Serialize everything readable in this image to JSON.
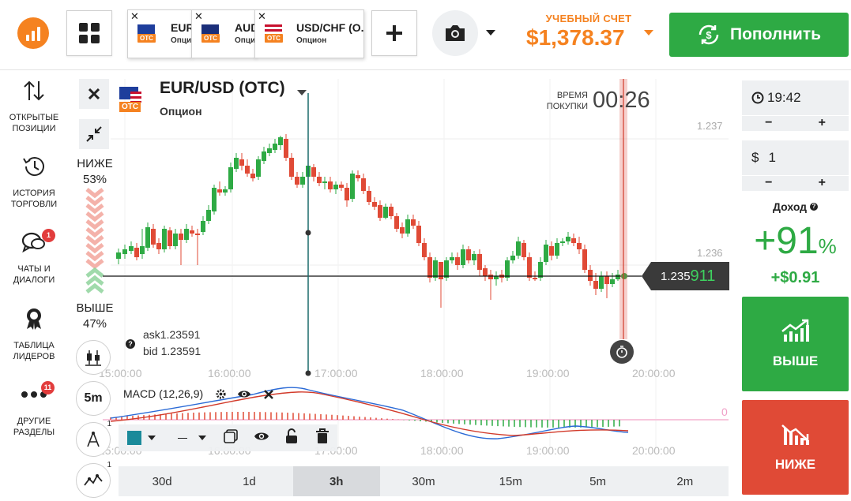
{
  "header": {
    "tabs": [
      {
        "name": "EUR",
        "type": "Опцион",
        "otc": "OTC"
      },
      {
        "name": "AUD",
        "type": "Опцион",
        "otc": "OTC"
      },
      {
        "name": "USD/CHF (O...",
        "type": "Опцион",
        "otc": "OTC"
      }
    ],
    "account_label": "УЧЕБНЫЙ СЧЕТ",
    "balance": "$1,378.37",
    "deposit_label": "Пополнить"
  },
  "sidebar": {
    "items": [
      {
        "label": "ОТКРЫТЫЕ ПОЗИЦИИ",
        "icon": "arrows-updown-icon"
      },
      {
        "label": "ИСТОРИЯ ТОРГОВЛИ",
        "icon": "history-icon"
      },
      {
        "label": "ЧАТЫ И ДИАЛОГИ",
        "icon": "chat-icon",
        "badge": "1"
      },
      {
        "label": "ТАБЛИЦА ЛИДЕРОВ",
        "icon": "medal-icon"
      },
      {
        "label": "ДРУГИЕ РАЗДЕЛЫ",
        "icon": "dots-icon",
        "badge": "11"
      }
    ]
  },
  "chart": {
    "pair": "EUR/USD (OTC)",
    "otc": "OTC",
    "subtitle": "Опцион",
    "buy_time_label": "ВРЕМЯ ПОКУПКИ",
    "buy_time": "00:26",
    "lower_label": "НИЖЕ",
    "lower_pct": "53%",
    "higher_label": "ВЫШЕ",
    "higher_pct": "47%",
    "ask": "ask1.23591",
    "bid": "bid  1.23591",
    "price_main": "1.235",
    "price_tail": "911",
    "price_labels": [
      "1.237",
      "1.236"
    ],
    "time_labels": [
      "15:00:00",
      "16:00:00",
      "17:00:00",
      "18:00:00",
      "19:00:00",
      "20:00:00"
    ],
    "macd_label": "MACD (12,26,9)",
    "macd_zero": "0",
    "interval": "5m",
    "tool_count_1": "1",
    "tool_count_2": "1",
    "timeframes": [
      "30d",
      "1d",
      "3h",
      "30m",
      "15m",
      "5m",
      "2m"
    ],
    "active_timeframe": "3h",
    "colors": {
      "up": "#2eaa44",
      "down": "#e04a36",
      "accent": "#f58220"
    }
  },
  "panel": {
    "time": "19:42",
    "amount": "1",
    "currency": "$",
    "minus": "−",
    "plus": "+",
    "income_label": "Доход",
    "income_pct": "+91",
    "income_pct_sign": "%",
    "income_amount": "+$0.91",
    "higher_btn": "ВЫШЕ",
    "lower_btn": "НИЖЕ"
  }
}
